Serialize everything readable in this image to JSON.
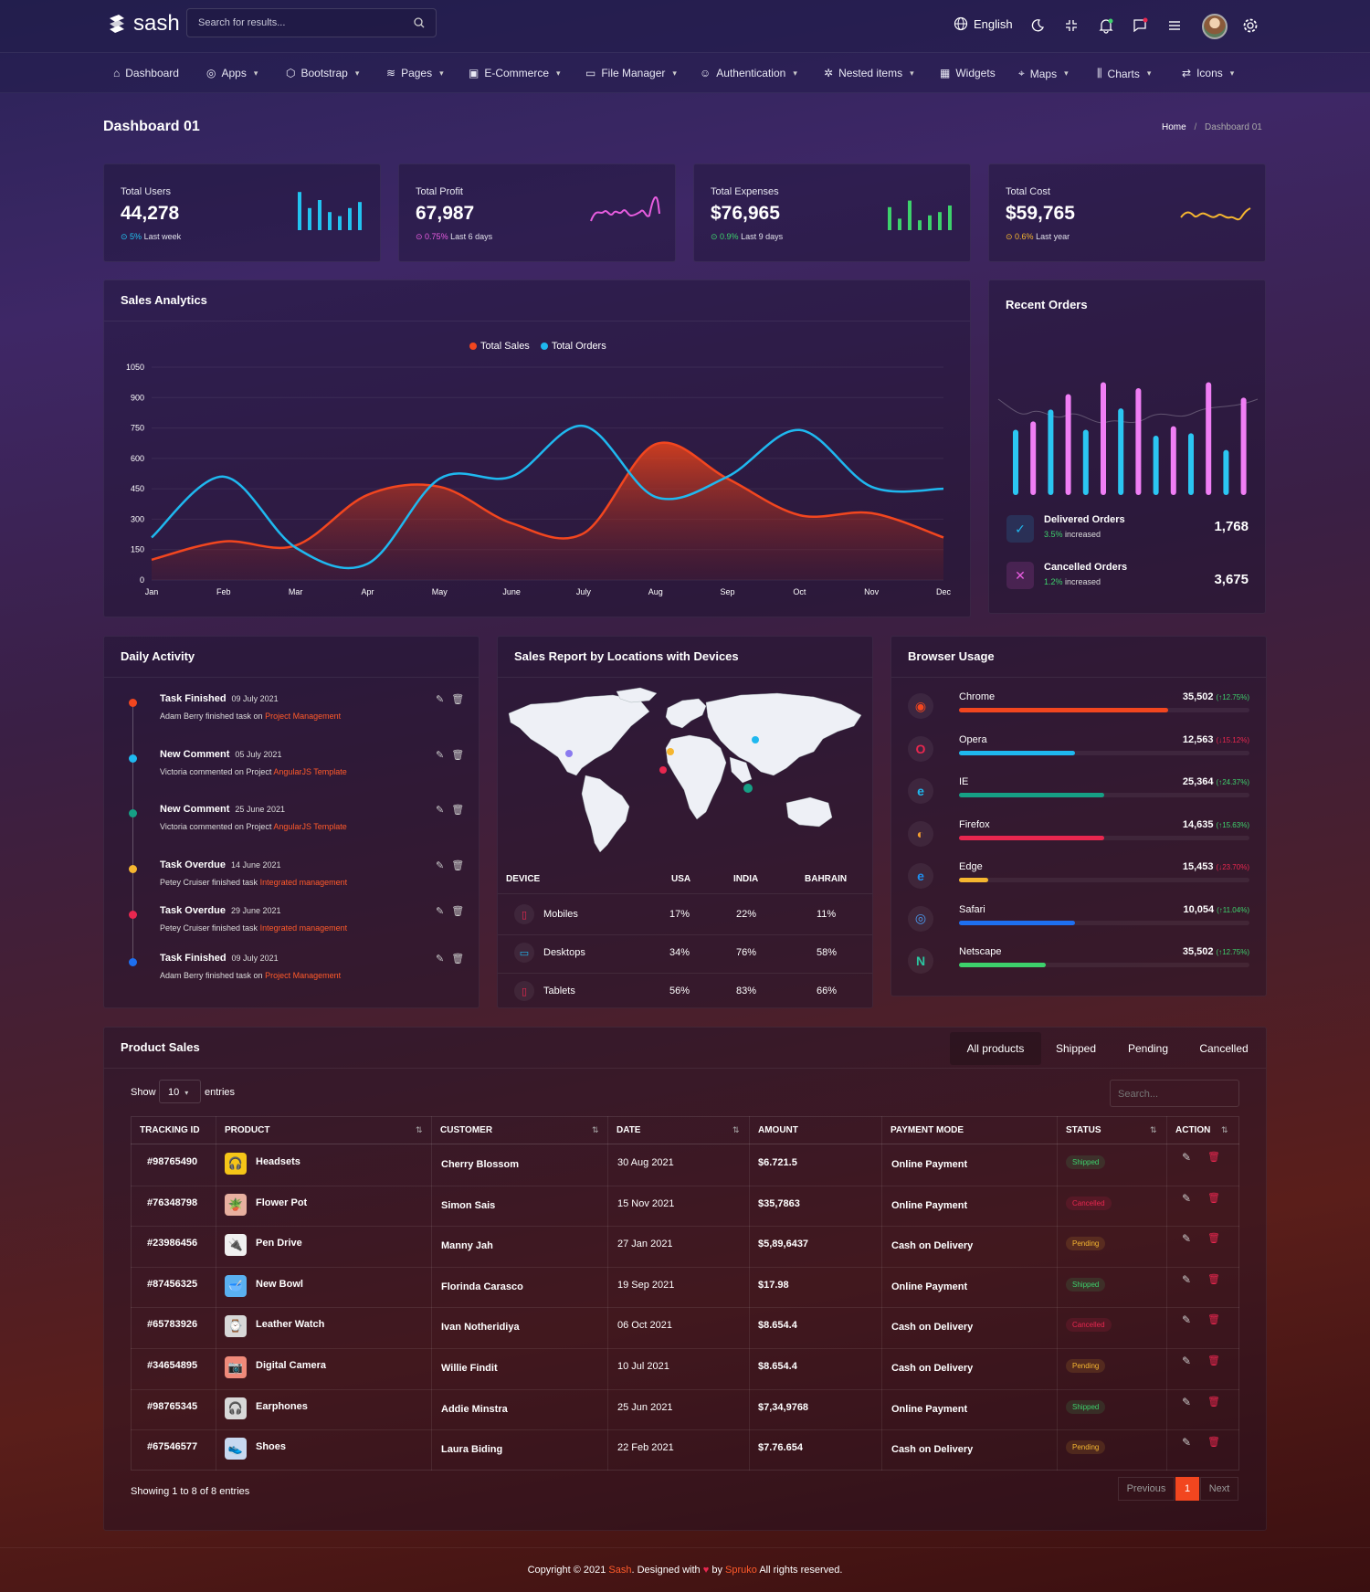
{
  "header": {
    "logo": "sash",
    "search_placeholder": "Search for results...",
    "language": "English"
  },
  "nav": [
    "Dashboard",
    "Apps",
    "Bootstrap",
    "Pages",
    "E-Commerce",
    "File Manager",
    "Authentication",
    "Nested items",
    "Widgets",
    "Maps",
    "Charts",
    "Icons"
  ],
  "page_title": "Dashboard 01",
  "breadcrumb": {
    "home": "Home",
    "current": "Dashboard 01"
  },
  "stats": [
    {
      "label": "Total Users",
      "value": "44,278",
      "pct": "5%",
      "period": "Last week",
      "color": "#22c3f0"
    },
    {
      "label": "Total Profit",
      "value": "67,987",
      "pct": "0.75%",
      "period": "Last 6 days",
      "color": "#e85de0"
    },
    {
      "label": "Total Expenses",
      "value": "$76,965",
      "pct": "0.9%",
      "period": "Last 9 days",
      "color": "#3dd16c"
    },
    {
      "label": "Total Cost",
      "value": "$59,765",
      "pct": "0.6%",
      "period": "Last year",
      "color": "#f5b630"
    }
  ],
  "sales_analytics": {
    "title": "Sales Analytics"
  },
  "chart_data": {
    "type": "area",
    "x": [
      "Jan",
      "Feb",
      "Mar",
      "Apr",
      "May",
      "June",
      "July",
      "Aug",
      "Sep",
      "Oct",
      "Nov",
      "Dec"
    ],
    "ylim": [
      0,
      1050
    ],
    "yticks": [
      0,
      150,
      300,
      450,
      600,
      750,
      900,
      1050
    ],
    "series": [
      {
        "name": "Total Sales",
        "color": "#f2461f",
        "values": [
          100,
          190,
          170,
          420,
          460,
          280,
          230,
          670,
          500,
          320,
          330,
          210
        ]
      },
      {
        "name": "Total Orders",
        "color": "#1fb8ef",
        "values": [
          210,
          510,
          160,
          80,
          500,
          510,
          760,
          410,
          510,
          740,
          460,
          450
        ]
      }
    ],
    "legend": "top-center"
  },
  "recent_orders": {
    "title": "Recent Orders",
    "bars": [
      {
        "v": 55,
        "c": "#2bc6f2"
      },
      {
        "v": 62,
        "c": "#f07ef5"
      },
      {
        "v": 72,
        "c": "#2bc6f2"
      },
      {
        "v": 85,
        "c": "#f07ef5"
      },
      {
        "v": 55,
        "c": "#2bc6f2"
      },
      {
        "v": 95,
        "c": "#f07ef5"
      },
      {
        "v": 73,
        "c": "#2bc6f2"
      },
      {
        "v": 90,
        "c": "#f07ef5"
      },
      {
        "v": 50,
        "c": "#2bc6f2"
      },
      {
        "v": 58,
        "c": "#f07ef5"
      },
      {
        "v": 52,
        "c": "#2bc6f2"
      },
      {
        "v": 95,
        "c": "#f07ef5"
      },
      {
        "v": 38,
        "c": "#2bc6f2"
      },
      {
        "v": 82,
        "c": "#f07ef5"
      }
    ],
    "delivered": {
      "label": "Delivered Orders",
      "pct": "3.5%",
      "text": "increased",
      "value": "1,768"
    },
    "cancelled": {
      "label": "Cancelled Orders",
      "pct": "1.2%",
      "text": "increased",
      "value": "3,675"
    }
  },
  "daily_activity": {
    "title": "Daily Activity",
    "items": [
      {
        "title": "Task Finished",
        "date": "09 July 2021",
        "desc": "Adam Berry finished task on",
        "link": "Project Management",
        "color": "#f2461f"
      },
      {
        "title": "New Comment",
        "date": "05 July 2021",
        "desc": "Victoria commented on Project",
        "link": "AngularJS Template",
        "color": "#1fb8ef"
      },
      {
        "title": "New Comment",
        "date": "25 June 2021",
        "desc": "Victoria commented on Project",
        "link": "AngularJS Template",
        "color": "#16a085"
      },
      {
        "title": "Task Overdue",
        "date": "14 June 2021",
        "desc": "Petey Cruiser finished task",
        "link": "Integrated management",
        "color": "#f5b630"
      },
      {
        "title": "Task Overdue",
        "date": "29 June 2021",
        "desc": "Petey Cruiser finished task",
        "link": "Integrated management",
        "color": "#e8274f"
      },
      {
        "title": "Task Finished",
        "date": "09 July 2021",
        "desc": "Adam Berry finished task on",
        "link": "Project Management",
        "color": "#1e6ff0"
      }
    ]
  },
  "sales_report": {
    "title": "Sales Report by Locations with Devices",
    "headers": [
      "DEVICE",
      "USA",
      "INDIA",
      "BAHRAIN"
    ],
    "rows": [
      {
        "device": "Mobiles",
        "usa": "17%",
        "india": "22%",
        "bahrain": "11%",
        "color": "#e8274f"
      },
      {
        "device": "Desktops",
        "usa": "34%",
        "india": "76%",
        "bahrain": "58%",
        "color": "#1fb8ef"
      },
      {
        "device": "Tablets",
        "usa": "56%",
        "india": "83%",
        "bahrain": "66%",
        "color": "#e8274f"
      }
    ]
  },
  "browser_usage": {
    "title": "Browser Usage",
    "items": [
      {
        "name": "Chrome",
        "value": "35,502",
        "pct": "12.75%",
        "dir": "up",
        "fill": 0.72,
        "color": "#f2461f",
        "icon": "chrome-icon"
      },
      {
        "name": "Opera",
        "value": "12,563",
        "pct": "15.12%",
        "dir": "down",
        "fill": 0.4,
        "color": "#1fb8ef",
        "icon": "opera-icon"
      },
      {
        "name": "IE",
        "value": "25,364",
        "pct": "24.37%",
        "dir": "up",
        "fill": 0.5,
        "color": "#16a085",
        "icon": "ie-icon"
      },
      {
        "name": "Firefox",
        "value": "14,635",
        "pct": "15.63%",
        "dir": "up",
        "fill": 0.5,
        "color": "#e8274f",
        "icon": "firefox-icon"
      },
      {
        "name": "Edge",
        "value": "15,453",
        "pct": "23.70%",
        "dir": "down",
        "fill": 0.1,
        "color": "#f5b630",
        "icon": "edge-icon"
      },
      {
        "name": "Safari",
        "value": "10,054",
        "pct": "11.04%",
        "dir": "up",
        "fill": 0.4,
        "color": "#1e6ff0",
        "icon": "safari-icon"
      },
      {
        "name": "Netscape",
        "value": "35,502",
        "pct": "12.75%",
        "dir": "up",
        "fill": 0.3,
        "color": "#3dd16c",
        "icon": "netscape-icon"
      }
    ]
  },
  "product_sales": {
    "title": "Product Sales",
    "tabs": [
      "All products",
      "Shipped",
      "Pending",
      "Cancelled"
    ],
    "show": "Show",
    "entries_value": "10",
    "entries": "entries",
    "search_placeholder": "Search...",
    "headers": [
      "TRACKING ID",
      "PRODUCT",
      "CUSTOMER",
      "DATE",
      "AMOUNT",
      "PAYMENT MODE",
      "STATUS",
      "ACTION"
    ],
    "rows": [
      {
        "id": "#98765490",
        "product": "Headsets",
        "customer": "Cherry Blossom",
        "date": "30 Aug 2021",
        "amount": "$6.721.5",
        "payment": "Online Payment",
        "status": "Shipped",
        "img": "🎧",
        "bg": "#f5c518"
      },
      {
        "id": "#76348798",
        "product": "Flower Pot",
        "customer": "Simon Sais",
        "date": "15 Nov 2021",
        "amount": "$35,7863",
        "payment": "Online Payment",
        "status": "Cancelled",
        "img": "🪴",
        "bg": "#e8b0a0"
      },
      {
        "id": "#23986456",
        "product": "Pen Drive",
        "customer": "Manny Jah",
        "date": "27 Jan 2021",
        "amount": "$5,89,6437",
        "payment": "Cash on Delivery",
        "status": "Pending",
        "img": "🔌",
        "bg": "#f0f0f0"
      },
      {
        "id": "#87456325",
        "product": "New Bowl",
        "customer": "Florinda Carasco",
        "date": "19 Sep 2021",
        "amount": "$17.98",
        "payment": "Online Payment",
        "status": "Shipped",
        "img": "🥣",
        "bg": "#5ab0f0"
      },
      {
        "id": "#65783926",
        "product": "Leather Watch",
        "customer": "Ivan Notheridiya",
        "date": "06 Oct 2021",
        "amount": "$8.654.4",
        "payment": "Cash on Delivery",
        "status": "Cancelled",
        "img": "⌚",
        "bg": "#d8d8d8"
      },
      {
        "id": "#34654895",
        "product": "Digital Camera",
        "customer": "Willie Findit",
        "date": "10 Jul 2021",
        "amount": "$8.654.4",
        "payment": "Cash on Delivery",
        "status": "Pending",
        "img": "📷",
        "bg": "#f08a7a"
      },
      {
        "id": "#98765345",
        "product": "Earphones",
        "customer": "Addie Minstra",
        "date": "25 Jun 2021",
        "amount": "$7,34,9768",
        "payment": "Online Payment",
        "status": "Shipped",
        "img": "🎧",
        "bg": "#d8d8d8"
      },
      {
        "id": "#67546577",
        "product": "Shoes",
        "customer": "Laura Biding",
        "date": "22 Feb 2021",
        "amount": "$7.76.654",
        "payment": "Cash on Delivery",
        "status": "Pending",
        "img": "👟",
        "bg": "#c8d8f0"
      }
    ],
    "showing": "Showing 1 to 8 of 8 entries",
    "pagination": {
      "previous": "Previous",
      "page": "1",
      "next": "Next"
    }
  },
  "footer": {
    "copyright": "Copyright © 2021",
    "brand": "Sash",
    "designed": ". Designed with",
    "by": "by",
    "company": "Spruko",
    "rights": "All rights reserved."
  },
  "status_colors": {
    "Shipped": "#3dd16c",
    "Cancelled": "#e8274f",
    "Pending": "#f5b630"
  }
}
